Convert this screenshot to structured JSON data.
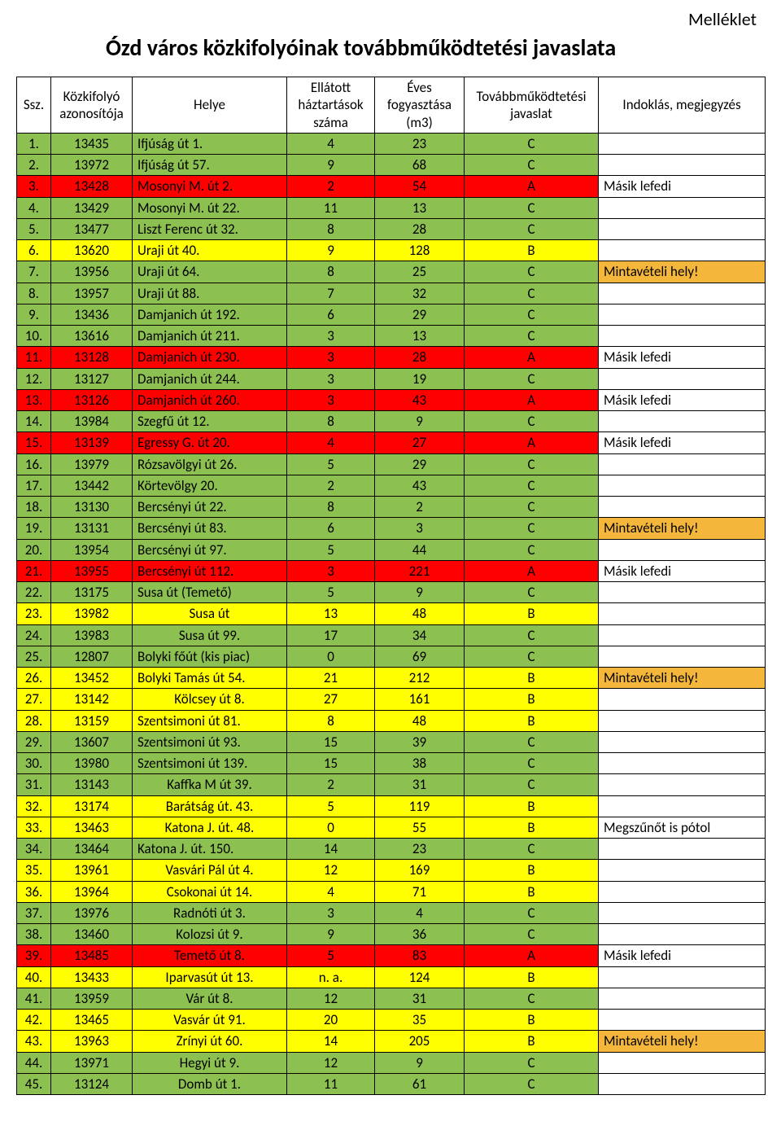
{
  "annex": "Melléklet",
  "title": "Ózd város közkifolyóinak továbbműködtetési javaslata",
  "colors": {
    "green": "#8cc152",
    "yellow": "#ffff00",
    "red": "#ff0000",
    "orange": "#f5b73b",
    "white": "#ffffff"
  },
  "headers": {
    "ssz": "Ssz.",
    "id": "Közkifolyó azonosítója",
    "place": "Helye",
    "hh": "Ellátott háztartások száma",
    "cons": "Éves fogyasztása (m3)",
    "prop": "Továbbműködtetési javaslat",
    "note": "Indoklás, megjegyzés"
  },
  "rows": [
    {
      "n": "1.",
      "id": "13435",
      "place": "Ifjúság út 1.",
      "hh": "4",
      "cons": "23",
      "prop": "C",
      "note": "",
      "color": "green",
      "placeCenter": false,
      "noteBg": "white"
    },
    {
      "n": "2.",
      "id": "13972",
      "place": "Ifjúság út 57.",
      "hh": "9",
      "cons": "68",
      "prop": "C",
      "note": "",
      "color": "green",
      "placeCenter": false,
      "noteBg": "white"
    },
    {
      "n": "3.",
      "id": "13428",
      "place": "Mosonyi M. út 2.",
      "hh": "2",
      "cons": "54",
      "prop": "A",
      "note": "Másik lefedi",
      "color": "red",
      "placeCenter": false,
      "noteBg": "white"
    },
    {
      "n": "4.",
      "id": "13429",
      "place": "Mosonyi M. út 22.",
      "hh": "11",
      "cons": "13",
      "prop": "C",
      "note": "",
      "color": "green",
      "placeCenter": false,
      "noteBg": "white"
    },
    {
      "n": "5.",
      "id": "13477",
      "place": "Liszt Ferenc út 32.",
      "hh": "8",
      "cons": "28",
      "prop": "C",
      "note": "",
      "color": "green",
      "placeCenter": false,
      "noteBg": "white"
    },
    {
      "n": "6.",
      "id": "13620",
      "place": "Uraji út 40.",
      "hh": "9",
      "cons": "128",
      "prop": "B",
      "note": "",
      "color": "yellow",
      "placeCenter": false,
      "noteBg": "white"
    },
    {
      "n": "7.",
      "id": "13956",
      "place": "Uraji út 64.",
      "hh": "8",
      "cons": "25",
      "prop": "C",
      "note": "Mintavételi hely!",
      "color": "green",
      "placeCenter": false,
      "noteBg": "orange"
    },
    {
      "n": "8.",
      "id": "13957",
      "place": "Uraji út 88.",
      "hh": "7",
      "cons": "32",
      "prop": "C",
      "note": "",
      "color": "green",
      "placeCenter": false,
      "noteBg": "white"
    },
    {
      "n": "9.",
      "id": "13436",
      "place": "Damjanich út 192.",
      "hh": "6",
      "cons": "29",
      "prop": "C",
      "note": "",
      "color": "green",
      "placeCenter": false,
      "noteBg": "white"
    },
    {
      "n": "10.",
      "id": "13616",
      "place": "Damjanich út 211.",
      "hh": "3",
      "cons": "13",
      "prop": "C",
      "note": "",
      "color": "green",
      "placeCenter": false,
      "noteBg": "white"
    },
    {
      "n": "11.",
      "id": "13128",
      "place": "Damjanich út 230.",
      "hh": "3",
      "cons": "28",
      "prop": "A",
      "note": "Másik lefedi",
      "color": "red",
      "placeCenter": false,
      "noteBg": "white"
    },
    {
      "n": "12.",
      "id": "13127",
      "place": "Damjanich út 244.",
      "hh": "3",
      "cons": "19",
      "prop": "C",
      "note": "",
      "color": "green",
      "placeCenter": false,
      "noteBg": "white"
    },
    {
      "n": "13.",
      "id": "13126",
      "place": "Damjanich út 260.",
      "hh": "3",
      "cons": "43",
      "prop": "A",
      "note": "Másik lefedi",
      "color": "red",
      "placeCenter": false,
      "noteBg": "white"
    },
    {
      "n": "14.",
      "id": "13984",
      "place": "Szegfű út 12.",
      "hh": "8",
      "cons": "9",
      "prop": "C",
      "note": "",
      "color": "green",
      "placeCenter": false,
      "noteBg": "white"
    },
    {
      "n": "15.",
      "id": "13139",
      "place": "Egressy G. út 20.",
      "hh": "4",
      "cons": "27",
      "prop": "A",
      "note": "Másik lefedi",
      "color": "red",
      "placeCenter": false,
      "noteBg": "white"
    },
    {
      "n": "16.",
      "id": "13979",
      "place": "Rózsavölgyi út 26.",
      "hh": "5",
      "cons": "29",
      "prop": "C",
      "note": "",
      "color": "green",
      "placeCenter": false,
      "noteBg": "white"
    },
    {
      "n": "17.",
      "id": "13442",
      "place": "Körtevölgy 20.",
      "hh": "2",
      "cons": "43",
      "prop": "C",
      "note": "",
      "color": "green",
      "placeCenter": false,
      "noteBg": "white"
    },
    {
      "n": "18.",
      "id": "13130",
      "place": "Bercsényi út 22.",
      "hh": "8",
      "cons": "2",
      "prop": "C",
      "note": "",
      "color": "green",
      "placeCenter": false,
      "noteBg": "white"
    },
    {
      "n": "19.",
      "id": "13131",
      "place": "Bercsényi út 83.",
      "hh": "6",
      "cons": "3",
      "prop": "C",
      "note": "Mintavételi hely!",
      "color": "green",
      "placeCenter": false,
      "noteBg": "orange"
    },
    {
      "n": "20.",
      "id": "13954",
      "place": "Bercsényi út 97.",
      "hh": "5",
      "cons": "44",
      "prop": "C",
      "note": "",
      "color": "green",
      "placeCenter": false,
      "noteBg": "white"
    },
    {
      "n": "21.",
      "id": "13955",
      "place": "Bercsényi út 112.",
      "hh": "3",
      "cons": "221",
      "prop": "A",
      "note": "Másik lefedi",
      "color": "red",
      "placeCenter": false,
      "noteBg": "white"
    },
    {
      "n": "22.",
      "id": "13175",
      "place": "Susa út (Temető)",
      "hh": "5",
      "cons": "9",
      "prop": "C",
      "note": "",
      "color": "green",
      "placeCenter": false,
      "noteBg": "white"
    },
    {
      "n": "23.",
      "id": "13982",
      "place": "Susa út",
      "hh": "13",
      "cons": "48",
      "prop": "B",
      "note": "",
      "color": "yellow",
      "placeCenter": true,
      "noteBg": "white"
    },
    {
      "n": "24.",
      "id": "13983",
      "place": "Susa út 99.",
      "hh": "17",
      "cons": "34",
      "prop": "C",
      "note": "",
      "color": "green",
      "placeCenter": true,
      "noteBg": "white"
    },
    {
      "n": "25.",
      "id": "12807",
      "place": "Bolyki főút (kis piac)",
      "hh": "0",
      "cons": "69",
      "prop": "C",
      "note": "",
      "color": "green",
      "placeCenter": false,
      "noteBg": "white"
    },
    {
      "n": "26.",
      "id": "13452",
      "place": "Bolyki Tamás út 54.",
      "hh": "21",
      "cons": "212",
      "prop": "B",
      "note": "Mintavételi hely!",
      "color": "yellow",
      "placeCenter": false,
      "noteBg": "orange"
    },
    {
      "n": "27.",
      "id": "13142",
      "place": "Kölcsey út 8.",
      "hh": "27",
      "cons": "161",
      "prop": "B",
      "note": "",
      "color": "yellow",
      "placeCenter": true,
      "noteBg": "white"
    },
    {
      "n": "28.",
      "id": "13159",
      "place": "Szentsimoni út 81.",
      "hh": "8",
      "cons": "48",
      "prop": "B",
      "note": "",
      "color": "yellow",
      "placeCenter": false,
      "noteBg": "white"
    },
    {
      "n": "29.",
      "id": "13607",
      "place": "Szentsimoni út 93.",
      "hh": "15",
      "cons": "39",
      "prop": "C",
      "note": "",
      "color": "green",
      "placeCenter": false,
      "noteBg": "white"
    },
    {
      "n": "30.",
      "id": "13980",
      "place": "Szentsimoni út 139.",
      "hh": "15",
      "cons": "38",
      "prop": "C",
      "note": "",
      "color": "green",
      "placeCenter": false,
      "noteBg": "white"
    },
    {
      "n": "31.",
      "id": "13143",
      "place": "Kaffka M út 39.",
      "hh": "2",
      "cons": "31",
      "prop": "C",
      "note": "",
      "color": "green",
      "placeCenter": true,
      "noteBg": "white"
    },
    {
      "n": "32.",
      "id": "13174",
      "place": "Barátság út. 43.",
      "hh": "5",
      "cons": "119",
      "prop": "B",
      "note": "",
      "color": "yellow",
      "placeCenter": true,
      "noteBg": "white"
    },
    {
      "n": "33.",
      "id": "13463",
      "place": "Katona J. út. 48.",
      "hh": "0",
      "cons": "55",
      "prop": "B",
      "note": "Megszűnőt is pótol",
      "color": "yellow",
      "placeCenter": true,
      "noteBg": "white"
    },
    {
      "n": "34.",
      "id": "13464",
      "place": "Katona J. út. 150.",
      "hh": "14",
      "cons": "23",
      "prop": "C",
      "note": "",
      "color": "green",
      "placeCenter": false,
      "noteBg": "white"
    },
    {
      "n": "35.",
      "id": "13961",
      "place": "Vasvári Pál út 4.",
      "hh": "12",
      "cons": "169",
      "prop": "B",
      "note": "",
      "color": "yellow",
      "placeCenter": true,
      "noteBg": "white"
    },
    {
      "n": "36.",
      "id": "13964",
      "place": "Csokonai út 14.",
      "hh": "4",
      "cons": "71",
      "prop": "B",
      "note": "",
      "color": "yellow",
      "placeCenter": true,
      "noteBg": "white"
    },
    {
      "n": "37.",
      "id": "13976",
      "place": "Radnóti út 3.",
      "hh": "3",
      "cons": "4",
      "prop": "C",
      "note": "",
      "color": "green",
      "placeCenter": true,
      "noteBg": "white"
    },
    {
      "n": "38.",
      "id": "13460",
      "place": "Kolozsi út 9.",
      "hh": "9",
      "cons": "36",
      "prop": "C",
      "note": "",
      "color": "green",
      "placeCenter": true,
      "noteBg": "white"
    },
    {
      "n": "39.",
      "id": "13485",
      "place": "Temető út 8.",
      "hh": "5",
      "cons": "83",
      "prop": "A",
      "note": "Másik lefedi",
      "color": "red",
      "placeCenter": true,
      "noteBg": "white"
    },
    {
      "n": "40.",
      "id": "13433",
      "place": "Iparvasút út 13.",
      "hh": "n. a.",
      "cons": "124",
      "prop": "B",
      "note": "",
      "color": "yellow",
      "placeCenter": true,
      "noteBg": "white"
    },
    {
      "n": "41.",
      "id": "13959",
      "place": "Vár út 8.",
      "hh": "12",
      "cons": "31",
      "prop": "C",
      "note": "",
      "color": "green",
      "placeCenter": true,
      "noteBg": "white"
    },
    {
      "n": "42.",
      "id": "13465",
      "place": "Vasvár út 91.",
      "hh": "20",
      "cons": "35",
      "prop": "B",
      "note": "",
      "color": "yellow",
      "placeCenter": true,
      "noteBg": "white"
    },
    {
      "n": "43.",
      "id": "13963",
      "place": "Zrínyi út 60.",
      "hh": "14",
      "cons": "205",
      "prop": "B",
      "note": "Mintavételi hely!",
      "color": "yellow",
      "placeCenter": true,
      "noteBg": "orange"
    },
    {
      "n": "44.",
      "id": "13971",
      "place": "Hegyi út 9.",
      "hh": "12",
      "cons": "9",
      "prop": "C",
      "note": "",
      "color": "green",
      "placeCenter": true,
      "noteBg": "white"
    },
    {
      "n": "45.",
      "id": "13124",
      "place": "Domb út 1.",
      "hh": "11",
      "cons": "61",
      "prop": "C",
      "note": "",
      "color": "green",
      "placeCenter": true,
      "noteBg": "white"
    }
  ]
}
